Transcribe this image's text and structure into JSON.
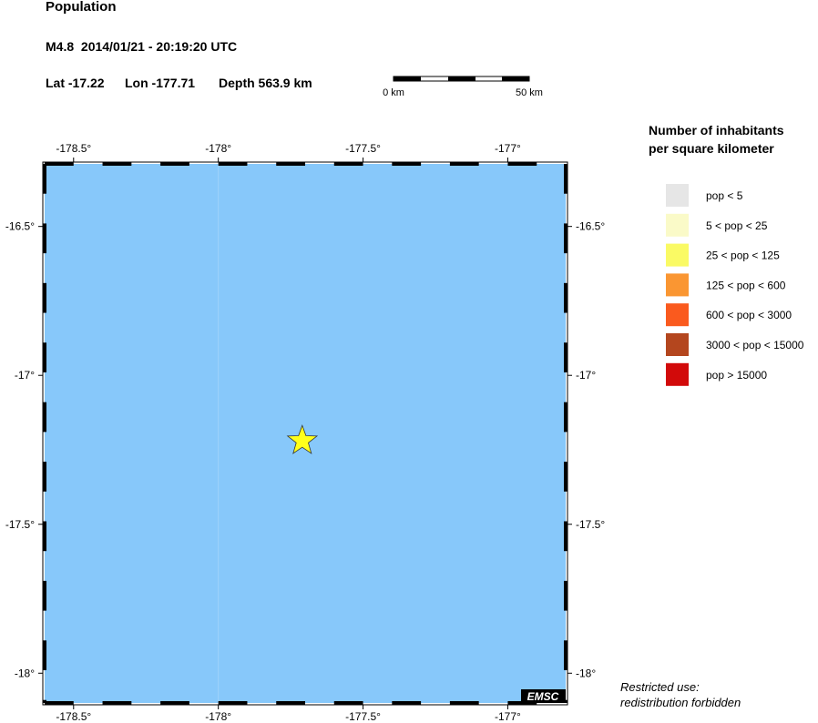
{
  "title": "Population",
  "event": {
    "line1": "M4.8  2014/01/21 - 20:19:20 UTC",
    "lat_label": "Lat -17.22",
    "lon_label": "Lon -177.71",
    "depth_label": "Depth 563.9 km",
    "lat": -17.22,
    "lon": -177.71,
    "marker_color": "#ffff1a"
  },
  "scale_bar": {
    "start_label": "0 km",
    "end_label": "50 km"
  },
  "map": {
    "lon_range": [
      -178.6,
      -176.8
    ],
    "lat_range": [
      -18.1,
      -16.29
    ],
    "sea_color": "#87c8fa",
    "lon_ticks": [
      {
        "value": -178.5,
        "label": "-178.5°"
      },
      {
        "value": -178.0,
        "label": "-178°"
      },
      {
        "value": -177.5,
        "label": "-177.5°"
      },
      {
        "value": -177.0,
        "label": "-177°"
      }
    ],
    "lat_ticks": [
      {
        "value": -16.5,
        "label": "-16.5°"
      },
      {
        "value": -17.0,
        "label": "-17°"
      },
      {
        "value": -17.5,
        "label": "-17.5°"
      },
      {
        "value": -18.0,
        "label": "-18°"
      }
    ],
    "badge": "EMSC"
  },
  "legend": {
    "title_line1": "Number of inhabitants",
    "title_line2": "per square kilometer",
    "items": [
      {
        "label": "pop < 5",
        "color": "#e6e6e6"
      },
      {
        "label": "5 < pop < 25",
        "color": "#fafac8"
      },
      {
        "label": "25 < pop < 125",
        "color": "#fafa64"
      },
      {
        "label": "125 < pop < 600",
        "color": "#fa9632"
      },
      {
        "label": "600 < pop < 3000",
        "color": "#fa5a1e"
      },
      {
        "label": "3000 < pop < 15000",
        "color": "#b4461e"
      },
      {
        "label": "pop > 15000",
        "color": "#d20a0a"
      }
    ]
  },
  "footer": {
    "line1": "Restricted use:",
    "line2": "redistribution forbidden"
  }
}
